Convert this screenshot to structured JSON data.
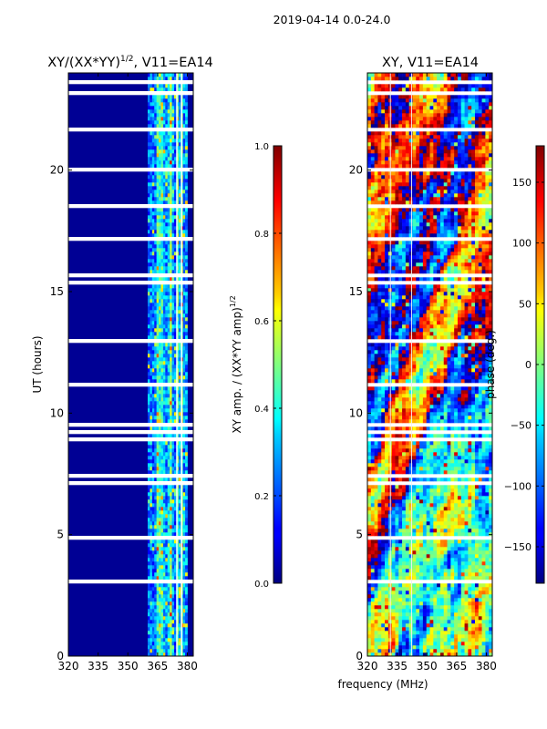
{
  "figure": {
    "suptitle": "2019-04-14 0.0-24.0",
    "xlabel": "frequency (MHz)"
  },
  "chart_data": [
    {
      "type": "heatmap",
      "title_main": "XY/(XX*YY)",
      "title_sup": "1/2",
      "title_rest": ", V11=EA14",
      "ylabel": "UT (hours)",
      "xlim": [
        320,
        383
      ],
      "ylim": [
        0,
        24
      ],
      "xticks": [
        320,
        335,
        350,
        365,
        380
      ],
      "yticks": [
        0,
        5,
        10,
        15,
        20
      ],
      "colorbar": {
        "label_main": "XY amp. / (XX*YY amp)",
        "label_sup": "1/2",
        "range": [
          0.0,
          1.0
        ],
        "ticks": [
          "0.0",
          "0.2",
          "0.4",
          "0.6",
          "0.8",
          "1.0"
        ],
        "tick_values": [
          0.0,
          0.2,
          0.4,
          0.6,
          0.8,
          1.0
        ],
        "colormap": "jet"
      },
      "active_band_mhz": [
        360,
        380
      ],
      "background_value": 0.02
    },
    {
      "type": "heatmap",
      "title": "XY, V11=EA14",
      "xlim": [
        320,
        383
      ],
      "ylim": [
        0,
        24
      ],
      "xticks": [
        320,
        335,
        350,
        365,
        380
      ],
      "yticks": [
        0,
        5,
        10,
        15,
        20
      ],
      "colorbar": {
        "label": "phase (deg.)",
        "range": [
          -180,
          180
        ],
        "ticks": [
          "−150",
          "−100",
          "−50",
          "0",
          "50",
          "100",
          "150"
        ],
        "tick_values": [
          -150,
          -100,
          -50,
          0,
          50,
          100,
          150
        ],
        "colormap": "jet"
      }
    }
  ],
  "colors": {
    "background": "#ffffff",
    "axis": "#000000",
    "gap": "#ffffff"
  }
}
